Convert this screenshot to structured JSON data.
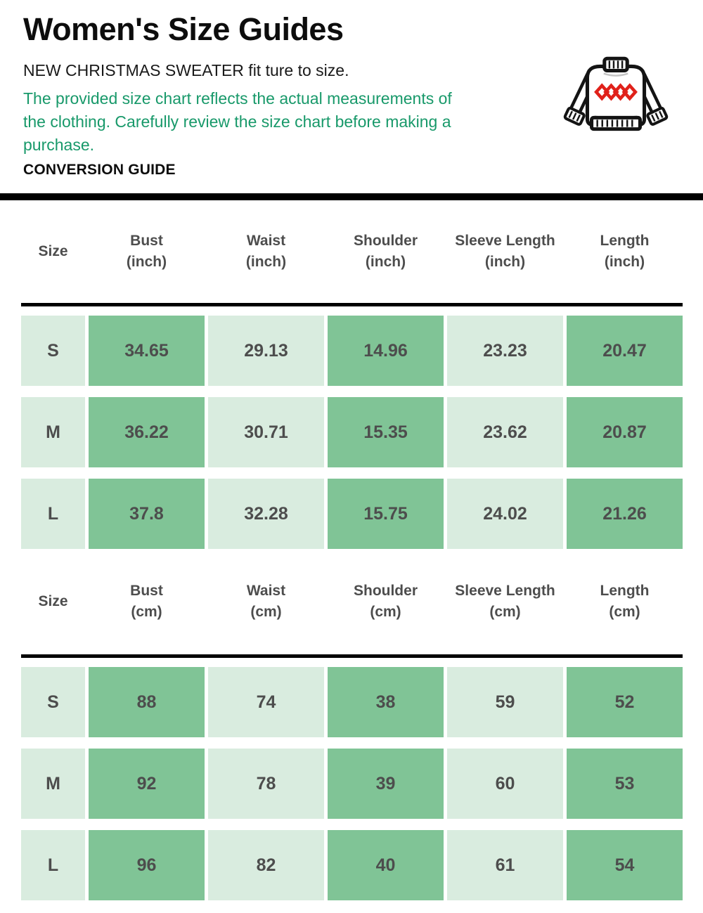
{
  "page": {
    "title": "Women's Size Guides",
    "subtitle": "NEW CHRISTMAS SWEATER fit ture to size.",
    "note": "The provided size chart reflects the actual measurements of the clothing. Carefully review the size chart before making a purchase.",
    "section_label": "CONVERSION GUIDE"
  },
  "colors": {
    "note_green": "#18996a",
    "cell_light": "#d9ecdf",
    "cell_medium": "#80c496",
    "value_text": "#4d4d4d",
    "divider_black": "#000000",
    "diamond_red": "#e0211a"
  },
  "icons": [
    {
      "name": "christmas-sweater-icon",
      "description": "black outlined knit sweater with ribbed collar, cuffs, hem and four red diamonds on the chest"
    }
  ],
  "tables": [
    {
      "unit": "inch",
      "columns": [
        {
          "label": "Size",
          "sub": ""
        },
        {
          "label": "Bust",
          "sub": "(inch)"
        },
        {
          "label": "Waist",
          "sub": "(inch)"
        },
        {
          "label": "Shoulder",
          "sub": "(inch)"
        },
        {
          "label": "Sleeve Length",
          "sub": "(inch)"
        },
        {
          "label": "Length",
          "sub": "(inch)"
        }
      ],
      "rows": [
        {
          "size": "S",
          "values": [
            "34.65",
            "29.13",
            "14.96",
            "23.23",
            "20.47"
          ]
        },
        {
          "size": "M",
          "values": [
            "36.22",
            "30.71",
            "15.35",
            "23.62",
            "20.87"
          ]
        },
        {
          "size": "L",
          "values": [
            "37.8",
            "32.28",
            "15.75",
            "24.02",
            "21.26"
          ]
        }
      ]
    },
    {
      "unit": "cm",
      "columns": [
        {
          "label": "Size",
          "sub": ""
        },
        {
          "label": "Bust",
          "sub": "(cm)"
        },
        {
          "label": "Waist",
          "sub": "(cm)"
        },
        {
          "label": "Shoulder",
          "sub": "(cm)"
        },
        {
          "label": "Sleeve Length",
          "sub": "(cm)"
        },
        {
          "label": "Length",
          "sub": "(cm)"
        }
      ],
      "rows": [
        {
          "size": "S",
          "values": [
            "88",
            "74",
            "38",
            "59",
            "52"
          ]
        },
        {
          "size": "M",
          "values": [
            "92",
            "78",
            "39",
            "60",
            "53"
          ]
        },
        {
          "size": "L",
          "values": [
            "96",
            "82",
            "40",
            "61",
            "54"
          ]
        }
      ]
    }
  ],
  "chart_data": [
    {
      "type": "table",
      "title": "Women's Size Guides (inches)",
      "columns": [
        "Size",
        "Bust (inch)",
        "Waist (inch)",
        "Shoulder (inch)",
        "Sleeve Length (inch)",
        "Length (inch)"
      ],
      "rows": [
        [
          "S",
          34.65,
          29.13,
          14.96,
          23.23,
          20.47
        ],
        [
          "M",
          36.22,
          30.71,
          15.35,
          23.62,
          20.87
        ],
        [
          "L",
          37.8,
          32.28,
          15.75,
          24.02,
          21.26
        ]
      ]
    },
    {
      "type": "table",
      "title": "Women's Size Guides (cm)",
      "columns": [
        "Size",
        "Bust (cm)",
        "Waist (cm)",
        "Shoulder (cm)",
        "Sleeve Length (cm)",
        "Length (cm)"
      ],
      "rows": [
        [
          "S",
          88,
          74,
          38,
          59,
          52
        ],
        [
          "M",
          92,
          78,
          39,
          60,
          53
        ],
        [
          "L",
          96,
          82,
          40,
          61,
          54
        ]
      ]
    }
  ]
}
